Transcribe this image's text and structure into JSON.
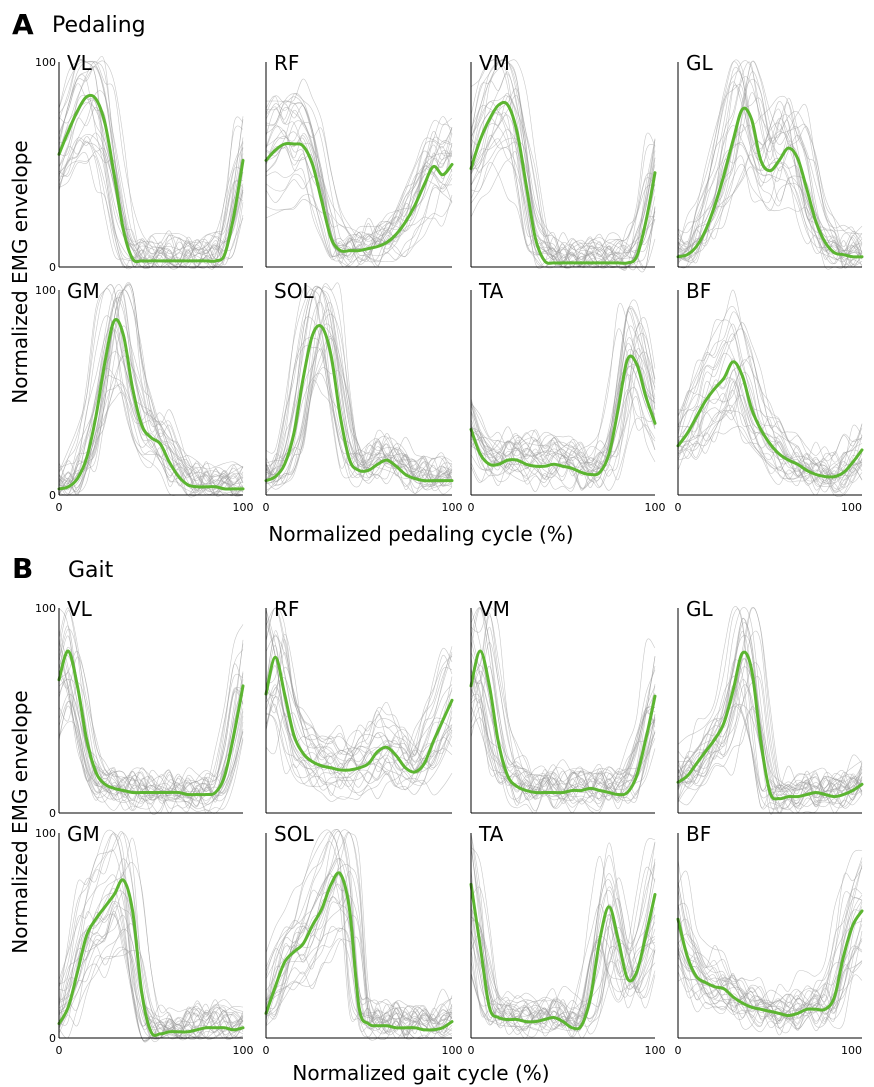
{
  "chart_data": [
    {
      "panel": "A",
      "title": "Pedaling",
      "type": "line",
      "xlabel": "Normalized pedaling cycle (%)",
      "ylabel": "Normalized EMG envelope",
      "xlim": [
        0,
        100
      ],
      "ylim": [
        0,
        100
      ],
      "x_ticks": [
        "0",
        "100"
      ],
      "y_ticks": [
        "0",
        "100"
      ],
      "mean_color": "#5cb531",
      "trace_color": "#9a9a9a",
      "series": [
        {
          "name": "VL",
          "x": [
            0,
            5,
            10,
            15,
            20,
            25,
            30,
            35,
            40,
            45,
            50,
            55,
            60,
            65,
            70,
            75,
            80,
            85,
            90,
            95,
            100
          ],
          "y": [
            55,
            66,
            76,
            83,
            82,
            70,
            45,
            18,
            4,
            3,
            3,
            3,
            3,
            3,
            3,
            3,
            3,
            3,
            6,
            25,
            52
          ]
        },
        {
          "name": "RF",
          "x": [
            0,
            5,
            10,
            15,
            20,
            25,
            30,
            35,
            40,
            45,
            50,
            55,
            60,
            65,
            70,
            75,
            80,
            85,
            90,
            95,
            100
          ],
          "y": [
            52,
            57,
            60,
            60,
            59,
            50,
            32,
            14,
            8,
            8,
            8,
            9,
            10,
            12,
            16,
            22,
            30,
            40,
            49,
            45,
            50
          ]
        },
        {
          "name": "VM",
          "x": [
            0,
            5,
            10,
            15,
            20,
            25,
            30,
            35,
            40,
            45,
            50,
            55,
            60,
            65,
            70,
            75,
            80,
            85,
            90,
            95,
            100
          ],
          "y": [
            48,
            62,
            72,
            79,
            79,
            66,
            40,
            14,
            3,
            2,
            2,
            2,
            2,
            2,
            2,
            2,
            2,
            2,
            5,
            22,
            46
          ]
        },
        {
          "name": "GL",
          "x": [
            0,
            5,
            10,
            15,
            20,
            25,
            30,
            35,
            40,
            45,
            50,
            55,
            60,
            65,
            70,
            75,
            80,
            85,
            90,
            95,
            100
          ],
          "y": [
            5,
            6,
            10,
            18,
            30,
            45,
            62,
            77,
            72,
            52,
            47,
            52,
            58,
            53,
            38,
            22,
            12,
            7,
            6,
            5,
            5
          ]
        },
        {
          "name": "GM",
          "x": [
            0,
            5,
            10,
            15,
            20,
            25,
            30,
            35,
            40,
            45,
            50,
            55,
            60,
            65,
            70,
            75,
            80,
            85,
            90,
            95,
            100
          ],
          "y": [
            3,
            4,
            8,
            18,
            38,
            65,
            85,
            78,
            52,
            34,
            28,
            25,
            16,
            9,
            5,
            4,
            4,
            4,
            3,
            3,
            3
          ]
        },
        {
          "name": "SOL",
          "x": [
            0,
            5,
            10,
            15,
            20,
            25,
            30,
            35,
            40,
            45,
            50,
            55,
            60,
            65,
            70,
            75,
            80,
            85,
            90,
            95,
            100
          ],
          "y": [
            7,
            9,
            15,
            30,
            57,
            78,
            82,
            68,
            38,
            17,
            12,
            12,
            15,
            17,
            14,
            10,
            8,
            7,
            7,
            7,
            7
          ]
        },
        {
          "name": "TA",
          "x": [
            0,
            5,
            10,
            15,
            20,
            25,
            30,
            35,
            40,
            45,
            50,
            55,
            60,
            65,
            70,
            75,
            80,
            85,
            90,
            95,
            100
          ],
          "y": [
            32,
            20,
            15,
            15,
            17,
            17,
            15,
            14,
            14,
            15,
            14,
            13,
            11,
            10,
            11,
            20,
            42,
            66,
            64,
            48,
            35
          ]
        },
        {
          "name": "BF",
          "x": [
            0,
            5,
            10,
            15,
            20,
            25,
            30,
            35,
            40,
            45,
            50,
            55,
            60,
            65,
            70,
            75,
            80,
            85,
            90,
            95,
            100
          ],
          "y": [
            24,
            30,
            38,
            46,
            52,
            57,
            65,
            58,
            42,
            32,
            25,
            20,
            17,
            15,
            12,
            10,
            9,
            9,
            11,
            16,
            22
          ]
        }
      ]
    },
    {
      "panel": "B",
      "title": "Gait",
      "type": "line",
      "xlabel": "Normalized gait cycle (%)",
      "ylabel": "Normalized EMG envelope",
      "xlim": [
        0,
        100
      ],
      "ylim": [
        0,
        100
      ],
      "x_ticks": [
        "0",
        "100"
      ],
      "y_ticks": [
        "0",
        "100"
      ],
      "mean_color": "#5cb531",
      "trace_color": "#9a9a9a",
      "series": [
        {
          "name": "VL",
          "x": [
            0,
            5,
            10,
            15,
            20,
            25,
            30,
            35,
            40,
            45,
            50,
            55,
            60,
            65,
            70,
            75,
            80,
            85,
            90,
            95,
            100
          ],
          "y": [
            65,
            79,
            62,
            36,
            20,
            14,
            12,
            11,
            10,
            10,
            10,
            10,
            10,
            10,
            9,
            9,
            9,
            10,
            18,
            38,
            62
          ]
        },
        {
          "name": "RF",
          "x": [
            0,
            5,
            10,
            15,
            20,
            25,
            30,
            35,
            40,
            45,
            50,
            55,
            60,
            65,
            70,
            75,
            80,
            85,
            90,
            95,
            100
          ],
          "y": [
            58,
            76,
            58,
            38,
            29,
            25,
            23,
            22,
            21,
            21,
            22,
            24,
            30,
            32,
            28,
            22,
            20,
            24,
            35,
            45,
            55
          ]
        },
        {
          "name": "VM",
          "x": [
            0,
            5,
            10,
            15,
            20,
            25,
            30,
            35,
            40,
            45,
            50,
            55,
            60,
            65,
            70,
            75,
            80,
            85,
            90,
            95,
            100
          ],
          "y": [
            62,
            79,
            62,
            34,
            18,
            13,
            11,
            10,
            10,
            10,
            10,
            11,
            11,
            12,
            11,
            10,
            9,
            10,
            18,
            36,
            57
          ]
        },
        {
          "name": "GL",
          "x": [
            0,
            5,
            10,
            15,
            20,
            25,
            30,
            35,
            40,
            45,
            50,
            55,
            60,
            65,
            70,
            75,
            80,
            85,
            90,
            95,
            100
          ],
          "y": [
            15,
            18,
            24,
            30,
            36,
            44,
            60,
            78,
            70,
            35,
            10,
            7,
            8,
            8,
            9,
            10,
            9,
            8,
            9,
            11,
            14
          ]
        },
        {
          "name": "GM",
          "x": [
            0,
            5,
            10,
            15,
            20,
            25,
            30,
            35,
            40,
            45,
            50,
            55,
            60,
            65,
            70,
            75,
            80,
            85,
            90,
            95,
            100
          ],
          "y": [
            7,
            15,
            32,
            50,
            58,
            64,
            70,
            77,
            62,
            22,
            3,
            2,
            3,
            3,
            3,
            4,
            5,
            5,
            5,
            4,
            5
          ]
        },
        {
          "name": "SOL",
          "x": [
            0,
            5,
            10,
            15,
            20,
            25,
            30,
            35,
            40,
            45,
            50,
            55,
            60,
            65,
            70,
            75,
            80,
            85,
            90,
            95,
            100
          ],
          "y": [
            12,
            25,
            37,
            42,
            46,
            55,
            63,
            75,
            80,
            62,
            15,
            7,
            6,
            6,
            5,
            5,
            5,
            4,
            4,
            5,
            8
          ]
        },
        {
          "name": "TA",
          "x": [
            0,
            5,
            10,
            15,
            20,
            25,
            30,
            35,
            40,
            45,
            50,
            55,
            60,
            65,
            70,
            75,
            80,
            85,
            90,
            95,
            100
          ],
          "y": [
            75,
            45,
            15,
            10,
            9,
            9,
            8,
            8,
            9,
            10,
            8,
            5,
            6,
            20,
            48,
            64,
            48,
            29,
            32,
            50,
            70
          ]
        },
        {
          "name": "BF",
          "x": [
            0,
            5,
            10,
            15,
            20,
            25,
            30,
            35,
            40,
            45,
            50,
            55,
            60,
            65,
            70,
            75,
            80,
            85,
            90,
            95,
            100
          ],
          "y": [
            58,
            40,
            30,
            27,
            25,
            24,
            20,
            17,
            15,
            14,
            13,
            12,
            11,
            12,
            14,
            14,
            14,
            20,
            40,
            55,
            62
          ]
        }
      ]
    }
  ]
}
